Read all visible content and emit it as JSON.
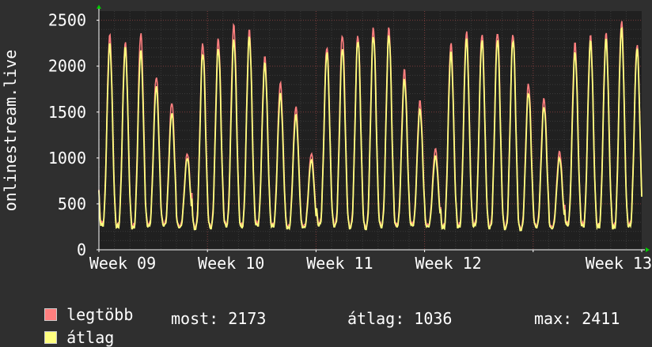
{
  "chart_data": {
    "type": "line",
    "ylabel": "onlinestream.live",
    "ylim": [
      0,
      2600
    ],
    "yticks": [
      0,
      500,
      1000,
      1500,
      2000,
      2500
    ],
    "xticks": [
      "Week 09",
      "Week 10",
      "Week 11",
      "Week 12",
      "Week 13"
    ],
    "grid": true,
    "legend_position": "bottom",
    "days": 35,
    "series": [
      {
        "name": "legtöbb",
        "color": "#ff7f7f",
        "daily_peak": [
          2340,
          2260,
          2360,
          1890,
          1610,
          1050,
          2250,
          2300,
          2450,
          2390,
          2100,
          1820,
          1560,
          1050,
          2220,
          2350,
          2340,
          2420,
          2420,
          1960,
          1620,
          1100,
          2250,
          2380,
          2360,
          2380,
          2360,
          1810,
          1650,
          1070,
          2250,
          2330,
          2360,
          2490,
          2240
        ],
        "daily_min": [
          280,
          260,
          250,
          270,
          280,
          260,
          240,
          250,
          270,
          260,
          280,
          270,
          250,
          260,
          280,
          270,
          250,
          240,
          260,
          270,
          280,
          270,
          250,
          260,
          270,
          250,
          240,
          230,
          260,
          250,
          280,
          270,
          260,
          250,
          270
        ]
      },
      {
        "name": "átlag",
        "color": "#ffff7f",
        "daily_peak": [
          2240,
          2200,
          2170,
          1780,
          1490,
          1000,
          2150,
          2200,
          2290,
          2320,
          2030,
          1700,
          1470,
          980,
          2150,
          2200,
          2290,
          2340,
          2340,
          1860,
          1530,
          1020,
          2150,
          2300,
          2280,
          2290,
          2290,
          1720,
          1560,
          1000,
          2150,
          2270,
          2290,
          2411,
          2190
        ],
        "daily_min": [
          260,
          240,
          230,
          250,
          260,
          240,
          220,
          230,
          250,
          240,
          260,
          250,
          230,
          240,
          260,
          250,
          230,
          220,
          240,
          250,
          260,
          250,
          230,
          240,
          250,
          230,
          220,
          210,
          240,
          230,
          260,
          250,
          240,
          230,
          250
        ]
      }
    ]
  },
  "legend": {
    "max_label": "legtöbb",
    "avg_label": "átlag",
    "max_color": "#ff7f7f",
    "avg_color": "#ffff7f"
  },
  "stats": {
    "current": "most: 2173",
    "average": "átlag: 1036",
    "maximum": "max: 2411"
  }
}
